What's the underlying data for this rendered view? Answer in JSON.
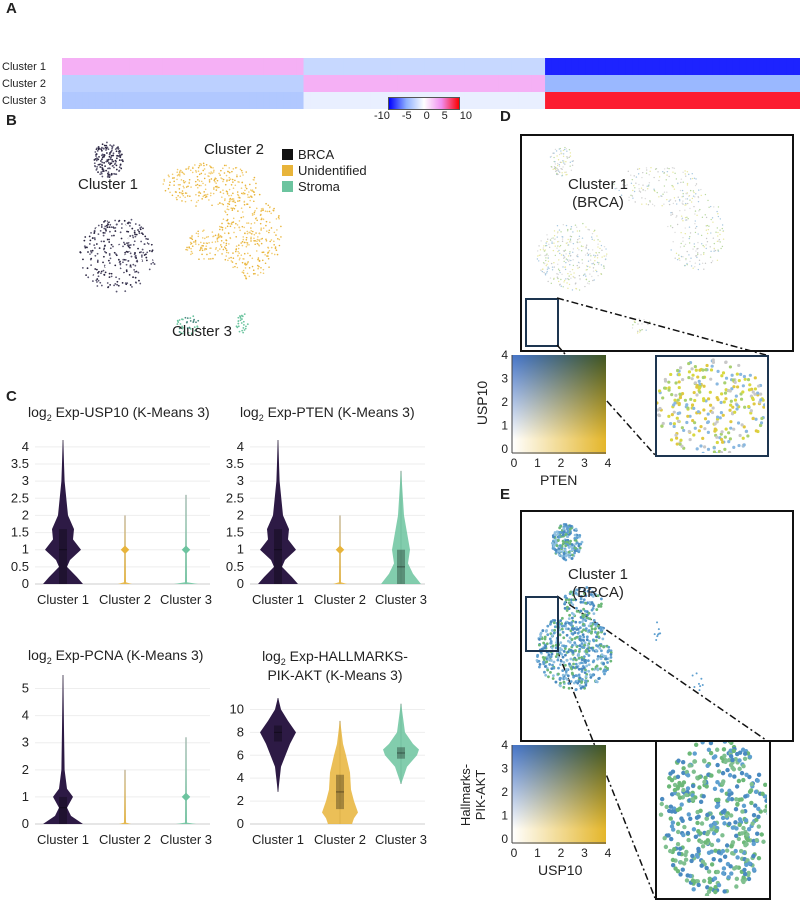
{
  "panels": {
    "A": "A",
    "B": "B",
    "C": "C",
    "D": "D",
    "E": "E"
  },
  "heatmap": {
    "type": "heatmap",
    "rows": [
      "Cluster 1",
      "Cluster 2",
      "Cluster 3"
    ],
    "column_groups": [
      {
        "n_genes": 36,
        "values": [
          3.5,
          -3,
          -3.5
        ]
      },
      {
        "n_genes": 36,
        "values": [
          -2.5,
          3.5,
          -1
        ]
      },
      {
        "n_genes": 38,
        "values": [
          -9,
          -4.5,
          9
        ]
      }
    ],
    "colorbar": {
      "ticks": [
        "-10",
        "-5",
        "0",
        "5",
        "10"
      ],
      "range": [
        -10,
        10
      ],
      "colors": [
        "#0000ff",
        "#8fb0ff",
        "#ffffff",
        "#f08ef0",
        "#ff0000"
      ]
    }
  },
  "umap": {
    "labels": {
      "c1": "Cluster 1",
      "c2": "Cluster 2",
      "c3": "Cluster 3"
    },
    "legend": [
      {
        "label": "BRCA",
        "color": "#111111"
      },
      {
        "label": "Unidentified",
        "color": "#e8b43a"
      },
      {
        "label": "Stroma",
        "color": "#6cc49f"
      }
    ]
  },
  "chart_data": [
    {
      "type": "violin",
      "title_prefix": "log",
      "title_sub": "2",
      "title": " Exp-USP10 (K-Means 3)",
      "ylim": [
        0,
        4.2
      ],
      "yticks": [
        "0",
        "0.5",
        "1",
        "1.5",
        "2",
        "2.5",
        "3",
        "3.5",
        "4"
      ],
      "categories": [
        "Cluster 1",
        "Cluster 2",
        "Cluster 3"
      ],
      "series": [
        {
          "color": "#2d1a45",
          "profile": [
            [
              0,
              1
            ],
            [
              0.2,
              0.7
            ],
            [
              0.5,
              0.2
            ],
            [
              0.7,
              0.35
            ],
            [
              1,
              0.9
            ],
            [
              1.3,
              0.5
            ],
            [
              1.6,
              0.55
            ],
            [
              2,
              0.25
            ],
            [
              3,
              0.08
            ],
            [
              4.2,
              0.01
            ]
          ],
          "box": [
            0,
            1,
            1.6
          ]
        },
        {
          "color": "#e8b43a",
          "profile": [
            [
              0,
              0.35
            ],
            [
              0.05,
              0.05
            ],
            [
              2,
              0.01
            ]
          ],
          "box": null,
          "marker": 1
        },
        {
          "color": "#6cc49f",
          "profile": [
            [
              0,
              0.6
            ],
            [
              0.05,
              0.05
            ],
            [
              2.6,
              0.01
            ]
          ],
          "box": null,
          "marker": 1
        }
      ]
    },
    {
      "type": "violin",
      "title_prefix": "log",
      "title_sub": "2",
      "title": " Exp-PTEN (K-Means 3)",
      "ylim": [
        0,
        4.2
      ],
      "yticks": [
        "0",
        "0.5",
        "1",
        "1.5",
        "2",
        "2.5",
        "3",
        "3.5",
        "4"
      ],
      "categories": [
        "Cluster 1",
        "Cluster 2",
        "Cluster 3"
      ],
      "series": [
        {
          "color": "#2d1a45",
          "profile": [
            [
              0,
              1
            ],
            [
              0.2,
              0.7
            ],
            [
              0.5,
              0.2
            ],
            [
              0.7,
              0.35
            ],
            [
              1,
              0.9
            ],
            [
              1.3,
              0.5
            ],
            [
              1.6,
              0.55
            ],
            [
              2,
              0.25
            ],
            [
              3,
              0.08
            ],
            [
              4.2,
              0.01
            ]
          ],
          "box": [
            0,
            1,
            1.6
          ]
        },
        {
          "color": "#e8b43a",
          "profile": [
            [
              0,
              0.35
            ],
            [
              0.05,
              0.05
            ],
            [
              2,
              0.01
            ]
          ],
          "box": null,
          "marker": 1
        },
        {
          "color": "#6cc49f",
          "profile": [
            [
              0,
              1
            ],
            [
              0.3,
              0.6
            ],
            [
              0.6,
              0.35
            ],
            [
              1,
              0.45
            ],
            [
              1.5,
              0.3
            ],
            [
              2,
              0.15
            ],
            [
              3.3,
              0.01
            ]
          ],
          "box": [
            0,
            0.5,
            1
          ]
        }
      ]
    },
    {
      "type": "violin",
      "title_prefix": "log",
      "title_sub": "2",
      "title": " Exp-PCNA (K-Means 3)",
      "ylim": [
        0,
        5.5
      ],
      "yticks": [
        "0",
        "1",
        "2",
        "3",
        "4",
        "5"
      ],
      "categories": [
        "Cluster 1",
        "Cluster 2",
        "Cluster 3"
      ],
      "series": [
        {
          "color": "#2d1a45",
          "profile": [
            [
              0,
              1
            ],
            [
              0.3,
              0.4
            ],
            [
              0.6,
              0.2
            ],
            [
              1,
              0.5
            ],
            [
              1.3,
              0.2
            ],
            [
              2,
              0.08
            ],
            [
              5.5,
              0.01
            ]
          ],
          "box": [
            0,
            0.6,
            1
          ]
        },
        {
          "color": "#e8b43a",
          "profile": [
            [
              0,
              0.3
            ],
            [
              0.05,
              0.05
            ],
            [
              2,
              0.01
            ]
          ],
          "box": null
        },
        {
          "color": "#6cc49f",
          "profile": [
            [
              0,
              0.5
            ],
            [
              0.05,
              0.05
            ],
            [
              3.2,
              0.01
            ]
          ],
          "box": null,
          "marker": 1
        }
      ]
    },
    {
      "type": "violin",
      "title_prefix": "log",
      "title_sub": "2",
      "title": " Exp-HALLMARKS-",
      "title2": "PIK-AKT (K-Means 3)",
      "ylim": [
        0,
        11
      ],
      "yticks": [
        "0",
        "2",
        "4",
        "6",
        "8",
        "10"
      ],
      "categories": [
        "Cluster 1",
        "Cluster 2",
        "Cluster 3"
      ],
      "series": [
        {
          "color": "#2d1a45",
          "profile": [
            [
              2.8,
              0.01
            ],
            [
              5,
              0.15
            ],
            [
              7,
              0.6
            ],
            [
              8,
              0.9
            ],
            [
              9,
              0.5
            ],
            [
              10,
              0.15
            ],
            [
              11,
              0.01
            ]
          ],
          "box": [
            7.2,
            8,
            8.6
          ]
        },
        {
          "color": "#e8b43a",
          "profile": [
            [
              0,
              0.6
            ],
            [
              0.5,
              0.7
            ],
            [
              1,
              0.9
            ],
            [
              2,
              0.7
            ],
            [
              3,
              0.55
            ],
            [
              4.5,
              0.5
            ],
            [
              6,
              0.3
            ],
            [
              7,
              0.15
            ],
            [
              9,
              0.01
            ]
          ],
          "box": [
            1.3,
            2.8,
            4.3
          ]
        },
        {
          "color": "#6cc49f",
          "profile": [
            [
              3.5,
              0.01
            ],
            [
              5,
              0.3
            ],
            [
              6,
              0.8
            ],
            [
              6.5,
              0.9
            ],
            [
              7,
              0.6
            ],
            [
              8,
              0.2
            ],
            [
              10.5,
              0.01
            ]
          ],
          "box": [
            5.7,
            6.2,
            6.7
          ]
        }
      ]
    }
  ],
  "D": {
    "cluster_label": "Cluster 1",
    "cluster_sub": "(BRCA)",
    "ylabel": "USP10",
    "xlabel": "PTEN",
    "ticks": [
      "0",
      "1",
      "2",
      "3",
      "4"
    ]
  },
  "E": {
    "cluster_label": "Cluster 1",
    "cluster_sub": "(BRCA)",
    "ylabel1": "Hallmarks-",
    "ylabel2": "PIK-AKT",
    "xlabel": "USP10",
    "ticks": [
      "0",
      "1",
      "2",
      "3",
      "4"
    ]
  }
}
